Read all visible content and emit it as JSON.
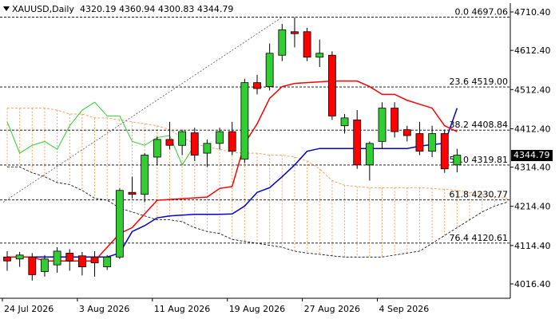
{
  "header": {
    "symbol": "XAUUSD,Daily",
    "ohlc": "4320.19 4360.94 4300.83 4344.79"
  },
  "current_price_label": "4344.79",
  "colors": {
    "bull": "#32cd32",
    "bear": "#ff0000",
    "tenkan": "#ff0000",
    "kijun": "#0000cd",
    "chikou": "#32cd32",
    "kumo": "#f4a460",
    "level_line": "#000000",
    "axis": "#000000"
  },
  "chart_data": {
    "type": "candlestick",
    "title": "XAUUSD,Daily",
    "ylim": [
      3990,
      4730
    ],
    "y_ticks": [
      "4710.40",
      "4612.40",
      "4512.40",
      "4412.40",
      "4314.40",
      "4214.40",
      "4114.40",
      "4016.40"
    ],
    "x_ticks": [
      "24 Jul 2026",
      "3 Aug 2026",
      "11 Aug 2026",
      "19 Aug 2026",
      "27 Aug 2026",
      "4 Sep 2026"
    ],
    "fib_levels": [
      {
        "label": "0.0 4697.06",
        "value": 4697.06
      },
      {
        "label": "23.6 4519.00",
        "value": 4519.0
      },
      {
        "label": "38.2 4408.84",
        "value": 4408.84
      },
      {
        "label": "50.0 4319.81",
        "value": 4319.81
      },
      {
        "label": "61.8 4230.77",
        "value": 4230.77
      },
      {
        "label": "76.4 4120.61",
        "value": 4120.61
      }
    ],
    "candles": [
      {
        "o": 4085,
        "h": 4100,
        "l": 4050,
        "c": 4075
      },
      {
        "o": 4080,
        "h": 4098,
        "l": 4060,
        "c": 4090
      },
      {
        "o": 4085,
        "h": 4095,
        "l": 4025,
        "c": 4040
      },
      {
        "o": 4048,
        "h": 4090,
        "l": 4035,
        "c": 4080
      },
      {
        "o": 4065,
        "h": 4110,
        "l": 4045,
        "c": 4100
      },
      {
        "o": 4095,
        "h": 4105,
        "l": 4050,
        "c": 4075
      },
      {
        "o": 4088,
        "h": 4098,
        "l": 4038,
        "c": 4060
      },
      {
        "o": 4085,
        "h": 4100,
        "l": 4035,
        "c": 4070
      },
      {
        "o": 4060,
        "h": 4090,
        "l": 4052,
        "c": 4085
      },
      {
        "o": 4085,
        "h": 4260,
        "l": 4080,
        "c": 4255
      },
      {
        "o": 4250,
        "h": 4290,
        "l": 4235,
        "c": 4245
      },
      {
        "o": 4245,
        "h": 4350,
        "l": 4225,
        "c": 4345
      },
      {
        "o": 4340,
        "h": 4392,
        "l": 4320,
        "c": 4385
      },
      {
        "o": 4385,
        "h": 4430,
        "l": 4360,
        "c": 4370
      },
      {
        "o": 4370,
        "h": 4410,
        "l": 4345,
        "c": 4405
      },
      {
        "o": 4402,
        "h": 4415,
        "l": 4330,
        "c": 4345
      },
      {
        "o": 4350,
        "h": 4385,
        "l": 4315,
        "c": 4375
      },
      {
        "o": 4375,
        "h": 4415,
        "l": 4360,
        "c": 4405
      },
      {
        "o": 4405,
        "h": 4430,
        "l": 4345,
        "c": 4355
      },
      {
        "o": 4335,
        "h": 4540,
        "l": 4325,
        "c": 4530
      },
      {
        "o": 4530,
        "h": 4550,
        "l": 4500,
        "c": 4515
      },
      {
        "o": 4520,
        "h": 4630,
        "l": 4510,
        "c": 4605
      },
      {
        "o": 4600,
        "h": 4680,
        "l": 4585,
        "c": 4665
      },
      {
        "o": 4660,
        "h": 4697,
        "l": 4620,
        "c": 4655
      },
      {
        "o": 4660,
        "h": 4670,
        "l": 4585,
        "c": 4595
      },
      {
        "o": 4595,
        "h": 4640,
        "l": 4570,
        "c": 4605
      },
      {
        "o": 4600,
        "h": 4610,
        "l": 4435,
        "c": 4445
      },
      {
        "o": 4420,
        "h": 4450,
        "l": 4400,
        "c": 4440
      },
      {
        "o": 4435,
        "h": 4460,
        "l": 4310,
        "c": 4320
      },
      {
        "o": 4320,
        "h": 4380,
        "l": 4280,
        "c": 4375
      },
      {
        "o": 4380,
        "h": 4480,
        "l": 4360,
        "c": 4465
      },
      {
        "o": 4465,
        "h": 4480,
        "l": 4390,
        "c": 4405
      },
      {
        "o": 4410,
        "h": 4420,
        "l": 4380,
        "c": 4395
      },
      {
        "o": 4400,
        "h": 4430,
        "l": 4345,
        "c": 4355
      },
      {
        "o": 4355,
        "h": 4420,
        "l": 4340,
        "c": 4400
      },
      {
        "o": 4400,
        "h": 4410,
        "l": 4300,
        "c": 4310
      },
      {
        "o": 4320,
        "h": 4361,
        "l": 4301,
        "c": 4345
      }
    ],
    "tenkan": [
      4085,
      4085,
      4085,
      4075,
      4075,
      4075,
      4075,
      4075,
      4110,
      4145,
      4160,
      4195,
      4230,
      4232,
      4234,
      4236,
      4238,
      4260,
      4265,
      4375,
      4425,
      4490,
      4520,
      4528,
      4530,
      4532,
      4534,
      4534,
      4534,
      4520,
      4500,
      4500,
      4485,
      4475,
      4465,
      4420,
      4405
    ],
    "kijun": [
      4085,
      4085,
      4085,
      4085,
      4085,
      4085,
      4085,
      4085,
      4085,
      4095,
      4150,
      4165,
      4185,
      4190,
      4192,
      4194,
      4194,
      4194,
      4195,
      4215,
      4250,
      4262,
      4290,
      4320,
      4355,
      4362,
      4362,
      4362,
      4362,
      4362,
      4362,
      4362,
      4362,
      4368,
      4372,
      4375,
      4465
    ],
    "chikou": [
      4430,
      4350,
      4370,
      4380,
      4360,
      4420,
      4460,
      4480,
      4445,
      4445,
      4380,
      4370,
      4390,
      4395,
      4320,
      4370
    ],
    "kumo_a": [
      4465,
      4465,
      4465,
      4465,
      4460,
      4450,
      4450,
      4440,
      4440,
      4435,
      4430,
      4425,
      4420,
      4410,
      4390,
      4375,
      4365,
      4360,
      4352,
      4350,
      4350,
      4345,
      4345,
      4340,
      4330,
      4310,
      4280,
      4268,
      4265,
      4262,
      4262,
      4262,
      4262,
      4262,
      4260,
      4258,
      4255,
      4250,
      4245,
      4238,
      4235
    ],
    "kumo_b": [
      4315,
      4315,
      4300,
      4290,
      4275,
      4270,
      4255,
      4235,
      4230,
      4210,
      4200,
      4190,
      4180,
      4180,
      4175,
      4160,
      4150,
      4145,
      4130,
      4125,
      4120,
      4115,
      4110,
      4100,
      4095,
      4092,
      4088,
      4085,
      4085,
      4085,
      4085,
      4090,
      4095,
      4100,
      4120,
      4140,
      4160,
      4180,
      4200,
      4215,
      4225
    ]
  }
}
